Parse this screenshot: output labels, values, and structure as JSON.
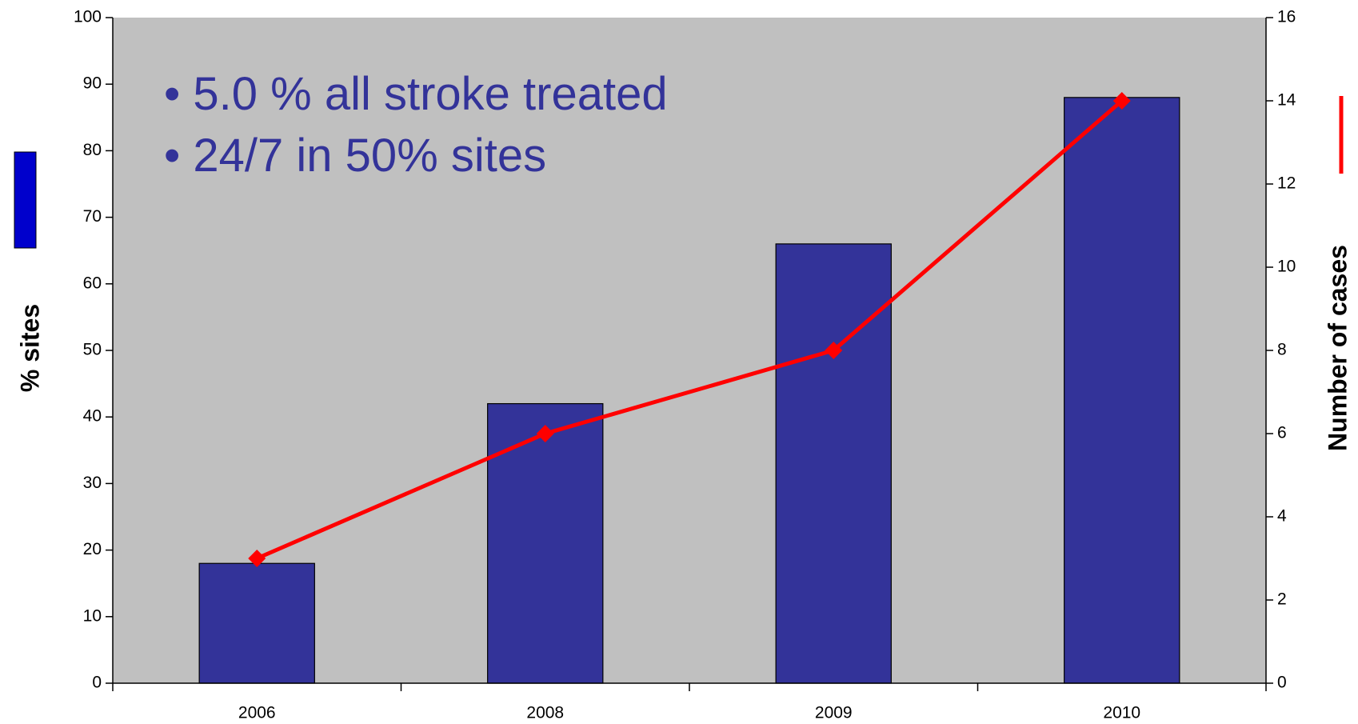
{
  "chart_data": {
    "type": "bar",
    "categories": [
      "2006",
      "2008",
      "2009",
      "2010"
    ],
    "series": [
      {
        "type": "bar",
        "color": "#333399",
        "values": [
          18,
          42,
          66,
          88
        ]
      },
      {
        "type": "line",
        "axis": "y2",
        "color": "#ff0000",
        "values": [
          3,
          6,
          8,
          14
        ]
      }
    ],
    "ylabel": "% sites",
    "y2label": "Number of cases",
    "annotations": [
      "• 5.0 % all stroke treated",
      "• 24/7 in 50% sites"
    ],
    "ylim": [
      0,
      100
    ],
    "yticks": [
      0,
      10,
      20,
      30,
      40,
      50,
      60,
      70,
      80,
      90,
      100
    ],
    "y2lim": [
      0,
      16
    ],
    "y2ticks": [
      0,
      2,
      4,
      6,
      8,
      10,
      12,
      14,
      16
    ],
    "plot_background": "#c0c0c0"
  }
}
